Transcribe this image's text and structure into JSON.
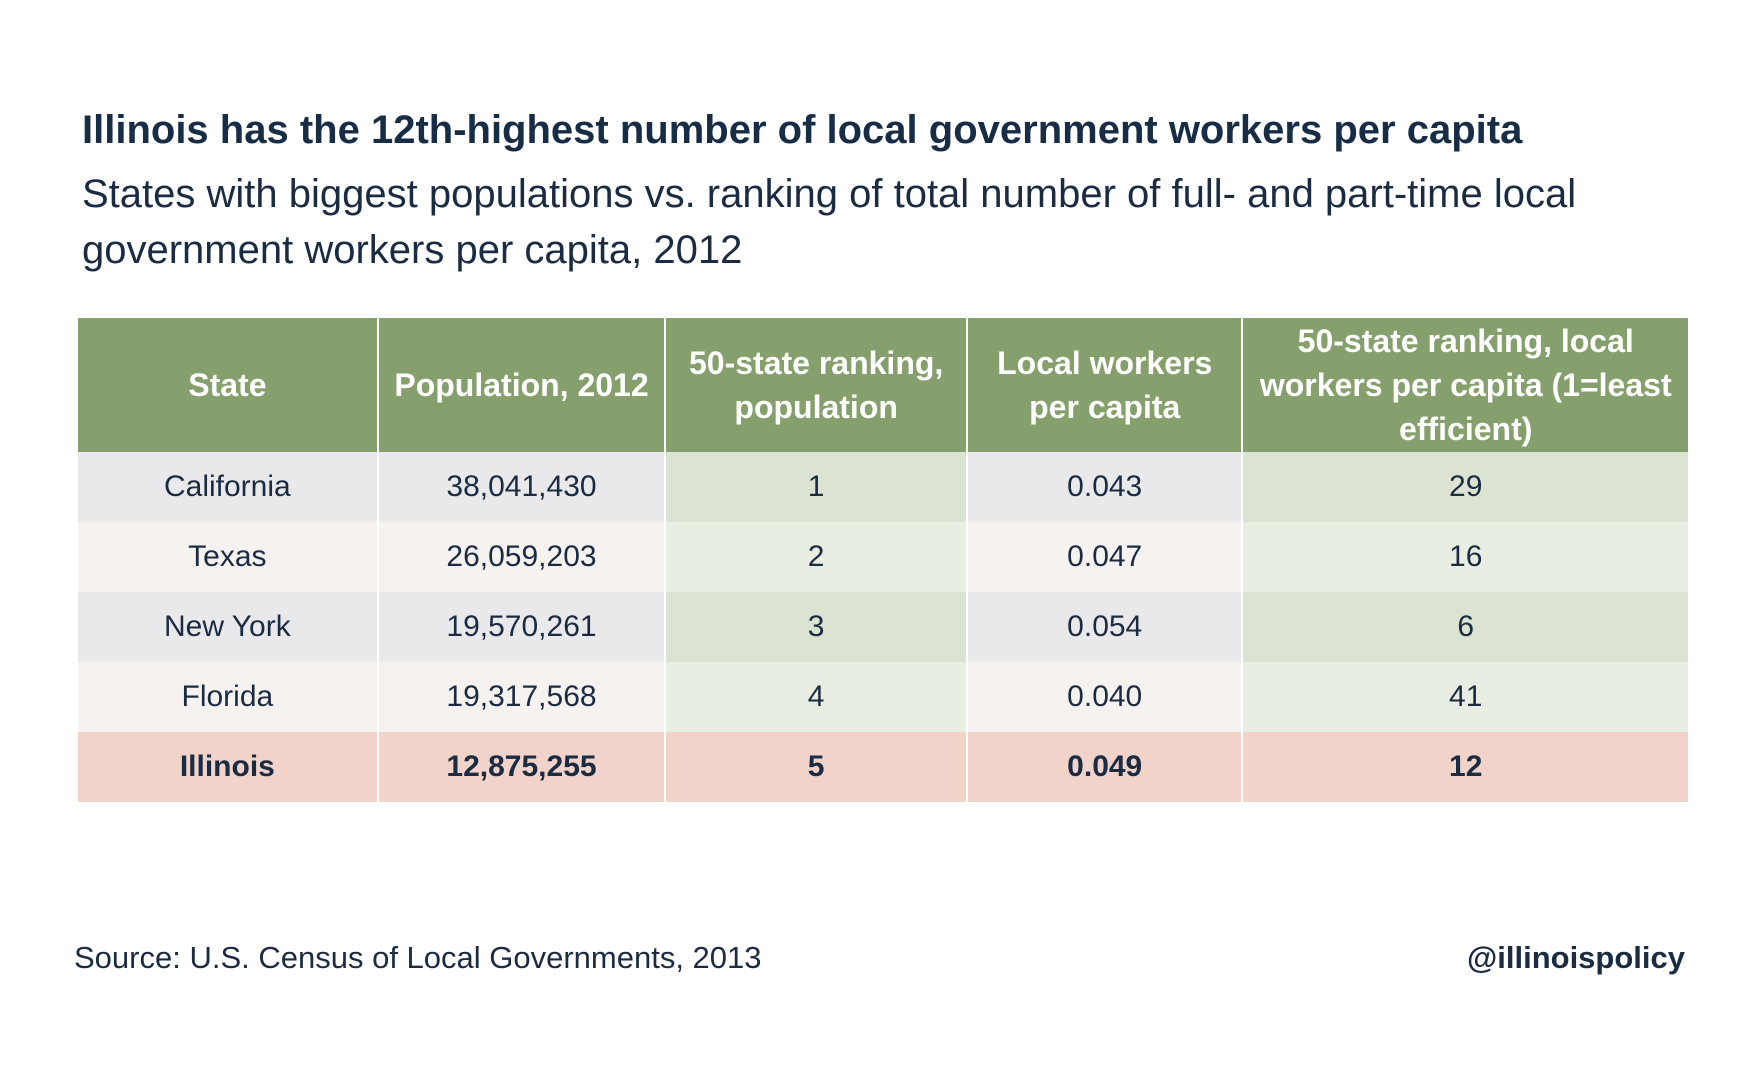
{
  "title": "Illinois has the 12th-highest number of local government workers per capita",
  "subtitle": "States with biggest populations vs. ranking of total number of full- and part-time local government workers per capita, 2012",
  "colors": {
    "header": "#86a06d",
    "highlight_row": "#f1d3ca",
    "text": "#1a2b42"
  },
  "chart_data": {
    "type": "table",
    "columns": [
      "State",
      "Population, 2012",
      "50-state ranking, population",
      "Local workers per capita",
      "50-state ranking, local workers per capita (1=least efficient)"
    ],
    "rows": [
      [
        "California",
        "38,041,430",
        "1",
        "0.043",
        "29"
      ],
      [
        "Texas",
        "26,059,203",
        "2",
        "0.047",
        "16"
      ],
      [
        "New York",
        "19,570,261",
        "3",
        "0.054",
        "6"
      ],
      [
        "Florida",
        "19,317,568",
        "4",
        "0.040",
        "41"
      ],
      [
        "Illinois",
        "12,875,255",
        "5",
        "0.049",
        "12"
      ]
    ],
    "highlighted_row": "Illinois"
  },
  "source": "Source: U.S. Census of Local Governments, 2013",
  "handle": "@illinoispolicy"
}
